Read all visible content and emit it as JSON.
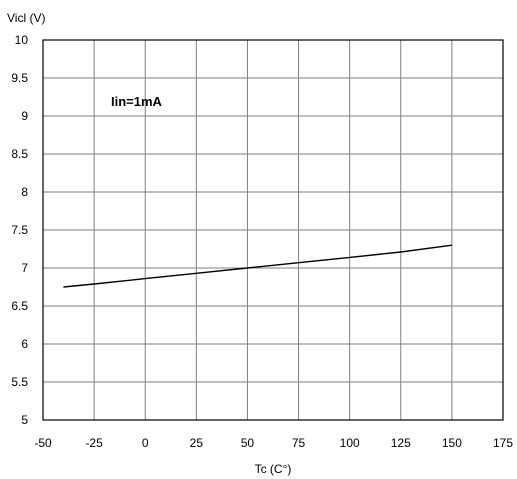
{
  "chart_data": {
    "type": "line",
    "ylabel": "Vicl (V)",
    "xlabel": "Tc (C°)",
    "annotation": "Iin=1mA",
    "xlim": [
      -50,
      175
    ],
    "ylim": [
      5,
      10
    ],
    "x_ticks": [
      "-50",
      "-25",
      "0",
      "25",
      "50",
      "75",
      "100",
      "125",
      "150",
      "175"
    ],
    "y_ticks": [
      "10",
      "9.5",
      "9",
      "8.5",
      "8",
      "7.5",
      "7",
      "6.5",
      "6",
      "5.5",
      "5"
    ],
    "grid": true,
    "series": [
      {
        "x": [
          -40,
          -25,
          0,
          25,
          50,
          75,
          100,
          125,
          150
        ],
        "y": [
          6.75,
          6.79,
          6.86,
          6.93,
          7.0,
          7.07,
          7.14,
          7.21,
          7.3
        ]
      }
    ],
    "colors": {
      "line": "#000000",
      "grid": "#7f7f7f",
      "frame": "#000000"
    }
  }
}
